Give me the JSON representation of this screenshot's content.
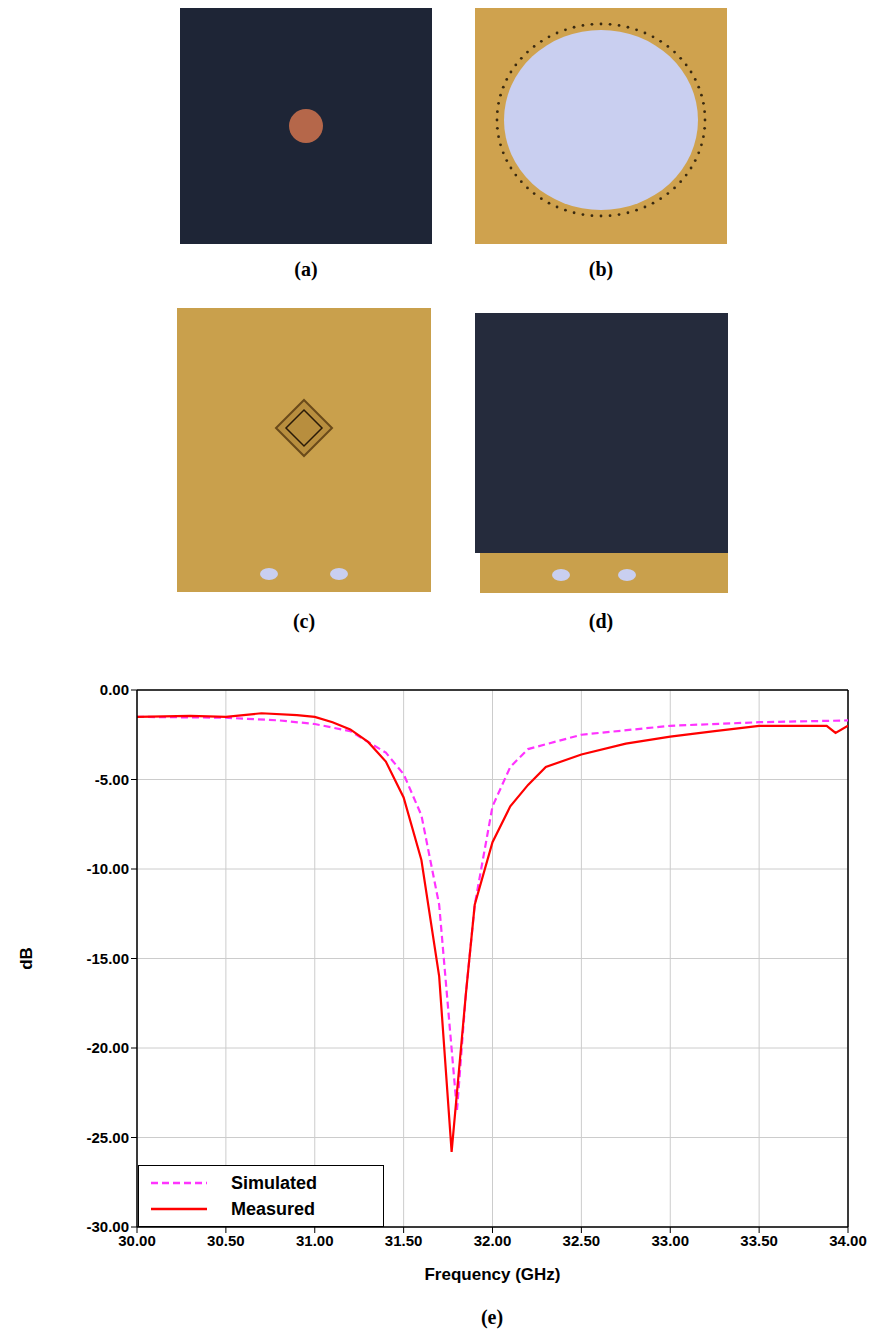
{
  "panel_labels": [
    "(a)",
    "(b)",
    "(c)",
    "(d)"
  ],
  "chart_data": {
    "type": "line",
    "panel_label": "(e)",
    "x_label": "Frequency (GHz)",
    "y_label": "dB",
    "xlim": [
      30,
      34
    ],
    "xticks": [
      {
        "value": 30,
        "label": "30.00"
      },
      {
        "value": 30.5,
        "label": "30.50"
      },
      {
        "value": 31,
        "label": "31.00"
      },
      {
        "value": 31.5,
        "label": "31.50"
      },
      {
        "value": 32,
        "label": "32.00"
      },
      {
        "value": 32.5,
        "label": "32.50"
      },
      {
        "value": 33,
        "label": "33.00"
      },
      {
        "value": 33.5,
        "label": "33.50"
      },
      {
        "value": 34,
        "label": "34.00"
      }
    ],
    "ylim": [
      -30,
      0
    ],
    "yticks": [
      {
        "value": -30,
        "label": "-30.00"
      },
      {
        "value": -25,
        "label": "-25.00"
      },
      {
        "value": -20,
        "label": "-20.00"
      },
      {
        "value": -15,
        "label": "-15.00"
      },
      {
        "value": -10,
        "label": "-10.00"
      },
      {
        "value": -5,
        "label": "-5.00"
      },
      {
        "value": 0,
        "label": "0.00"
      }
    ],
    "grid": true,
    "legend": "lower left",
    "series": [
      {
        "name": "Simulated",
        "color": "#ff33ff",
        "line_style": "dashed",
        "x": [
          30.0,
          30.5,
          30.8,
          31.0,
          31.2,
          31.4,
          31.5,
          31.6,
          31.7,
          31.8,
          31.85,
          31.9,
          32.0,
          32.1,
          32.2,
          32.5,
          33.0,
          33.5,
          34.0
        ],
        "values": [
          -1.5,
          -1.55,
          -1.7,
          -1.9,
          -2.3,
          -3.5,
          -4.7,
          -7.0,
          -12.0,
          -23.5,
          -17.0,
          -12.0,
          -6.5,
          -4.3,
          -3.3,
          -2.5,
          -2.0,
          -1.8,
          -1.7
        ]
      },
      {
        "name": "Measured",
        "color": "#ff0000",
        "line_style": "solid",
        "x": [
          30.0,
          30.3,
          30.5,
          30.7,
          30.9,
          31.0,
          31.1,
          31.2,
          31.3,
          31.4,
          31.5,
          31.6,
          31.7,
          31.77,
          31.85,
          31.9,
          32.0,
          32.1,
          32.2,
          32.3,
          32.5,
          32.75,
          33.0,
          33.25,
          33.5,
          33.75,
          33.88,
          33.93,
          34.0
        ],
        "values": [
          -1.5,
          -1.45,
          -1.5,
          -1.3,
          -1.4,
          -1.5,
          -1.8,
          -2.2,
          -2.9,
          -4.0,
          -6.0,
          -9.5,
          -16.0,
          -25.8,
          -17.0,
          -12.0,
          -8.5,
          -6.5,
          -5.3,
          -4.3,
          -3.6,
          -3.0,
          -2.6,
          -2.3,
          -2.0,
          -2.0,
          -2.0,
          -2.4,
          -2.0
        ]
      }
    ]
  }
}
